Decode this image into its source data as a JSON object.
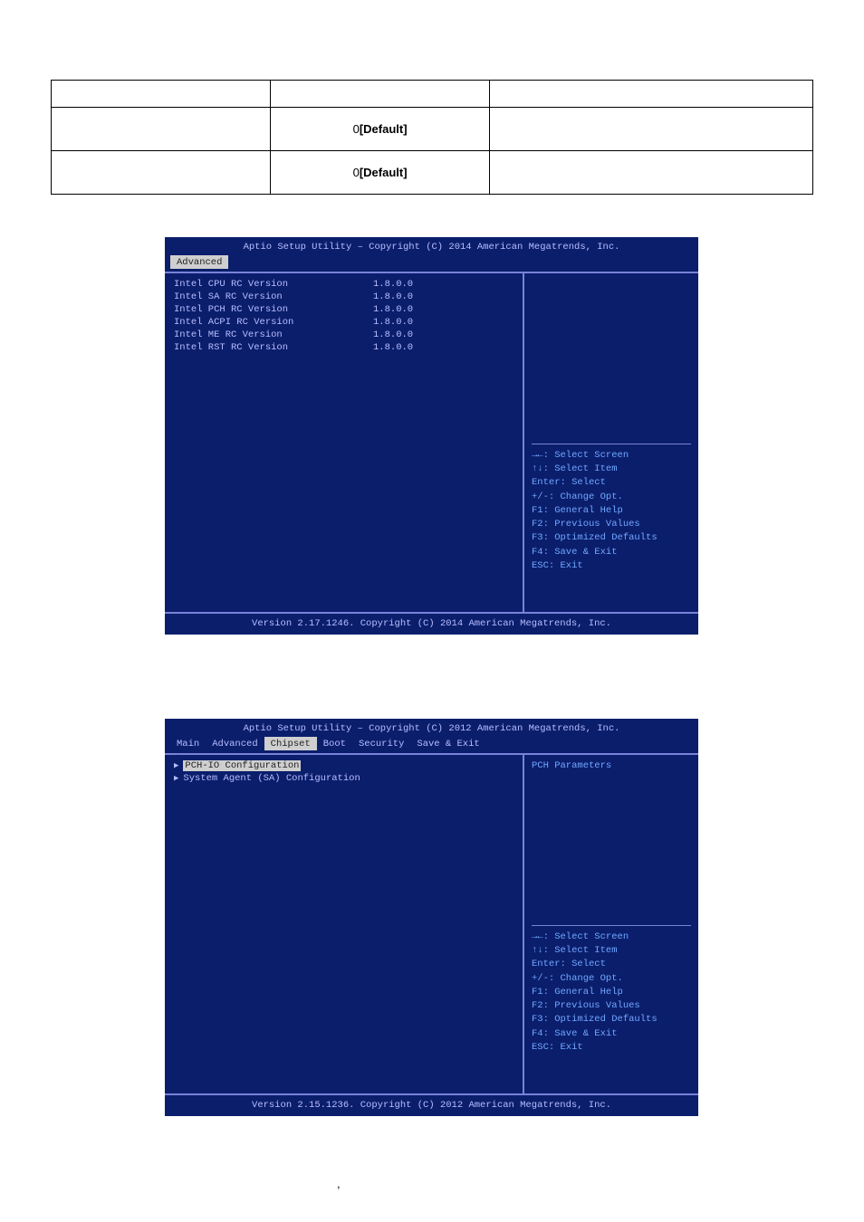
{
  "top_table": {
    "rows": [
      {
        "c1": "",
        "c2": "",
        "c3": ""
      },
      {
        "c1": "",
        "c2_prefix": "0",
        "c2_bold": "[Default]",
        "c3": ""
      },
      {
        "c1": "",
        "c2_prefix": "0",
        "c2_bold": "[Default]",
        "c3": ""
      }
    ]
  },
  "panel1": {
    "title": "Aptio Setup Utility – Copyright (C) 2014 American Megatrends, Inc.",
    "footer": "Version 2.17.1246. Copyright (C) 2014 American Megatrends, Inc.",
    "active_tab": "Advanced",
    "items": [
      {
        "label": "Intel CPU RC Version",
        "value": "1.8.0.0"
      },
      {
        "label": "Intel SA RC Version",
        "value": "1.8.0.0"
      },
      {
        "label": "Intel PCH RC Version",
        "value": "1.8.0.0"
      },
      {
        "label": "Intel ACPI RC Version",
        "value": "1.8.0.0"
      },
      {
        "label": "Intel ME RC Version",
        "value": "1.8.0.0"
      },
      {
        "label": "Intel RST RC Version",
        "value": "1.8.0.0"
      }
    ]
  },
  "panel2": {
    "title": "Aptio Setup Utility – Copyright (C) 2012 American Megatrends, Inc.",
    "footer": "Version 2.15.1236. Copyright (C) 2012 American Megatrends, Inc.",
    "tabs": [
      "Main",
      "Advanced",
      "Chipset",
      "Boot",
      "Security",
      "Save & Exit"
    ],
    "active_tab": "Chipset",
    "menu": [
      {
        "label": "PCH-IO Configuration",
        "selected": true
      },
      {
        "label": "System Agent (SA) Configuration",
        "selected": false
      }
    ],
    "right_desc": "PCH Parameters"
  },
  "help": {
    "lines": [
      "→←: Select Screen",
      "↑↓: Select Item",
      "Enter: Select",
      "+/-: Change Opt.",
      "F1: General Help",
      "F2: Previous Values",
      "F3: Optimized Defaults",
      "F4: Save & Exit",
      "ESC: Exit"
    ]
  },
  "bottom_caption": ","
}
